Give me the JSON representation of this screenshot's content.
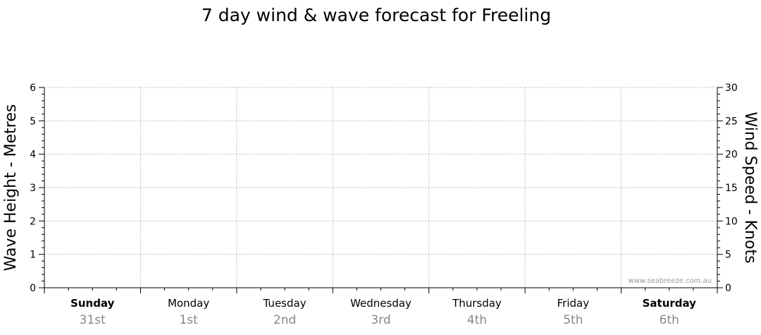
{
  "chart_data": {
    "type": "line",
    "title": "7 day wind & wave forecast for Freeling",
    "ylabel_left": "Wave Height - Metres",
    "ylabel_right": "Wind Speed - Knots",
    "ylim_left": [
      0,
      6
    ],
    "ylim_right": [
      0,
      30
    ],
    "yticks_left": [
      "0",
      "1",
      "2",
      "3",
      "4",
      "5",
      "6"
    ],
    "yticks_right": [
      "0",
      "5",
      "10",
      "15",
      "20",
      "25",
      "30"
    ],
    "days": [
      {
        "name": "Sunday",
        "date": "31st",
        "bold": true
      },
      {
        "name": "Monday",
        "date": "1st",
        "bold": false
      },
      {
        "name": "Tuesday",
        "date": "2nd",
        "bold": false
      },
      {
        "name": "Wednesday",
        "date": "3rd",
        "bold": false
      },
      {
        "name": "Thursday",
        "date": "4th",
        "bold": false
      },
      {
        "name": "Friday",
        "date": "5th",
        "bold": false
      },
      {
        "name": "Saturday",
        "date": "6th",
        "bold": true
      }
    ],
    "series": [],
    "grid": true,
    "watermark": "www.seabreeze.com.au"
  }
}
